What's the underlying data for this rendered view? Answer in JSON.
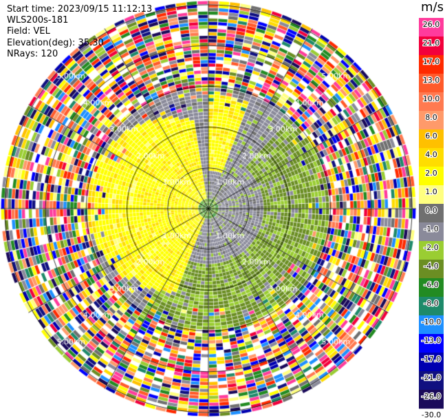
{
  "info": {
    "start_time": "Start time: 2023/09/15 11:12:13",
    "site": "WLS200s-181",
    "field": "Field: VEL",
    "elevation": "Elevation(deg): 35.30",
    "nrays": "NRays: 120"
  },
  "chart_data": {
    "type": "heatmap",
    "subtype": "ppi-polar",
    "field": "VEL",
    "nrays": 120,
    "elevation_deg": 35.3,
    "start_time": "2023/09/15 11:12:13",
    "range_rings_km": [
      1,
      2,
      3,
      4,
      5
    ],
    "range_ring_labels": [
      "1.00km",
      "2.00km",
      "3.00km",
      "4.00km",
      "5.00km"
    ],
    "max_range_km": 5.1,
    "spokes_deg": [
      0,
      30,
      60,
      90,
      120,
      150,
      180,
      210,
      240,
      270,
      300,
      330
    ],
    "colorbar": {
      "unit": "m/s",
      "ticks": [
        "26.0",
        "21.0",
        "17.0",
        "13.0",
        "10.0",
        "8.0",
        "6.0",
        "4.0",
        "2.0",
        "1.0",
        "0.0",
        "-1.0",
        "-2.0",
        "-4.0",
        "-6.0",
        "-8.0",
        "-10.0",
        "-13.0",
        "-17.0",
        "-21.0",
        "-26.0",
        "-30.0"
      ],
      "colors": [
        "#ff3b9c",
        "#f2003c",
        "#ff2a00",
        "#ff5a2a",
        "#ff7a50",
        "#ff9a6a",
        "#ffc000",
        "#ffdd00",
        "#ffff00",
        "#ffff80",
        "#707070",
        "#8a8a9a",
        "#9acd32",
        "#6b8e23",
        "#228b22",
        "#1e8a6a",
        "#1e90ff",
        "#0000ff",
        "#0000b0",
        "#101080",
        "#1a0a5a"
      ]
    },
    "regions": [
      {
        "name": "inner positive",
        "value_range": [
          1.0,
          4.0
        ],
        "sector_deg": [
          200,
          350
        ],
        "range_km": [
          0,
          2.2
        ]
      },
      {
        "name": "inner zero",
        "value_range": [
          -1.0,
          0.0
        ],
        "sector_deg": [
          350,
          200
        ],
        "range_km": [
          0,
          1.4
        ]
      },
      {
        "name": "inner negative",
        "value_range": [
          -4.0,
          -1.0
        ],
        "sector_deg": [
          30,
          210
        ],
        "range_km": [
          0.4,
          3.0
        ]
      },
      {
        "name": "outer noise",
        "value_range": [
          -30.0,
          26.0
        ],
        "range_km": [
          3.0,
          5.1
        ]
      }
    ]
  }
}
